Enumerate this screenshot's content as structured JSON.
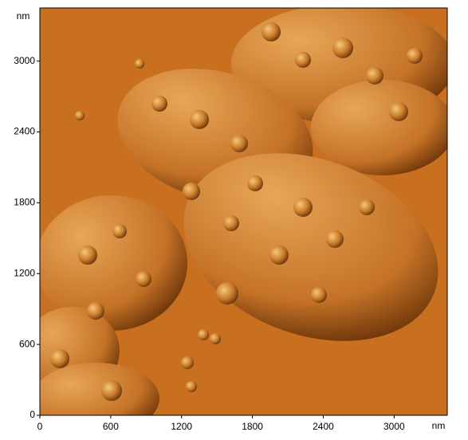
{
  "chart_data": {
    "type": "image",
    "x_label": "nm",
    "y_label": "nm",
    "xlim": [
      0,
      3450
    ],
    "ylim": [
      0,
      3450
    ],
    "xticks": [
      0,
      600,
      1200,
      1800,
      2400,
      3000
    ],
    "yticks": [
      0,
      600,
      1200,
      1800,
      2400,
      3000
    ]
  }
}
